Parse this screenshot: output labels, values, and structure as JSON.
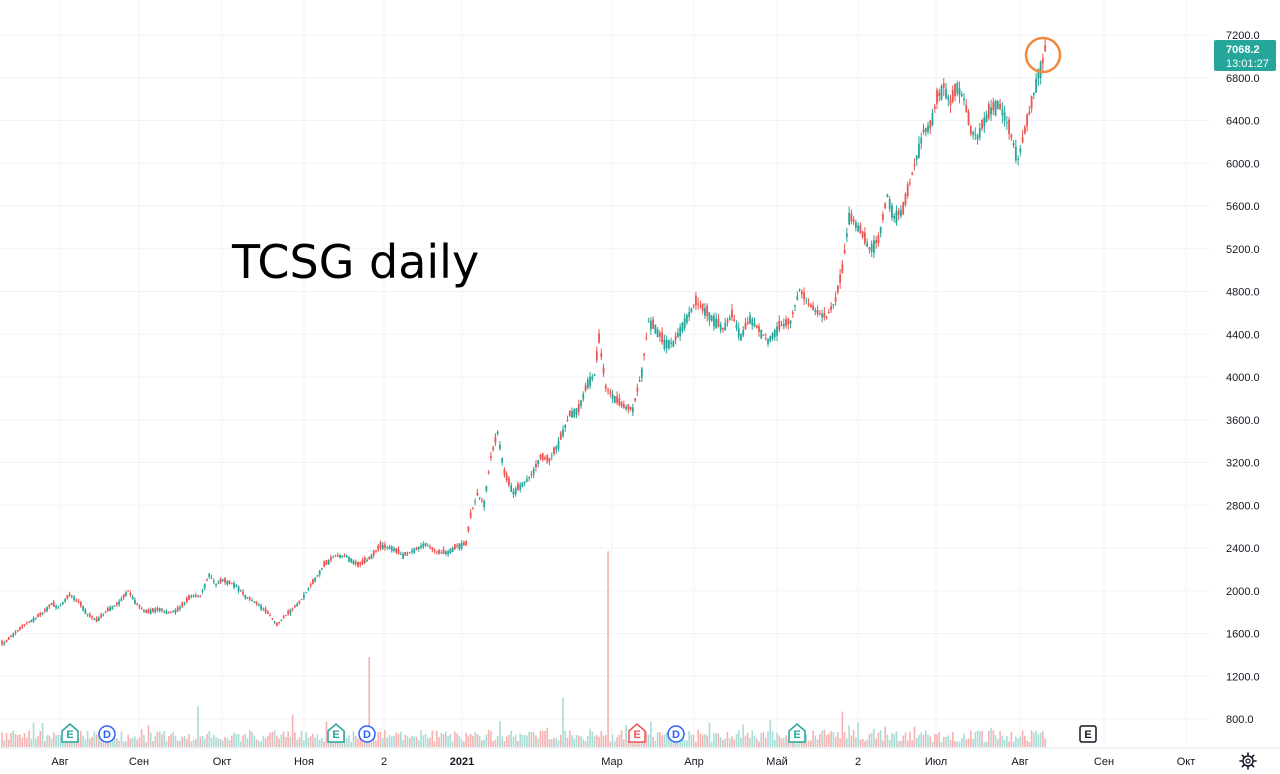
{
  "chart_data": {
    "type": "candlestick",
    "title": "TCSG daily",
    "ylim": [
      700,
      7250
    ],
    "y_ticks": [
      "800.0",
      "1200.0",
      "1600.0",
      "2000.0",
      "2400.0",
      "2800.0",
      "3200.0",
      "3600.0",
      "4000.0",
      "4400.0",
      "4800.0",
      "5200.0",
      "5600.0",
      "6000.0",
      "6400.0",
      "6800.0",
      "7200.0"
    ],
    "y_tick_values": [
      800,
      1200,
      1600,
      2000,
      2400,
      2800,
      3200,
      3600,
      4000,
      4400,
      4800,
      5200,
      5600,
      6000,
      6400,
      6800,
      7200
    ],
    "x_ticks": [
      "Авг",
      "Сен",
      "Окт",
      "Ноя",
      "2",
      "2021",
      "Мар",
      "Апр",
      "Май",
      "2",
      "Июл",
      "Авг",
      "Сен",
      "Окт"
    ],
    "last_price": "7068.2",
    "countdown": "13:01:27",
    "colors": {
      "up": "#26a69a",
      "down": "#ef5350",
      "up_volume": "#a8dcd6",
      "down_volume": "#f5b2b0",
      "highlight": "#f0883e",
      "price_tag": "#26a69a",
      "grid": "#f0f3fa",
      "dividend": "#2962ff"
    },
    "anchors": [
      [
        1,
        1510
      ],
      [
        5,
        1590
      ],
      [
        10,
        1680
      ],
      [
        18,
        1790
      ],
      [
        22,
        1880
      ],
      [
        25,
        1840
      ],
      [
        30,
        1960
      ],
      [
        34,
        1900
      ],
      [
        38,
        1780
      ],
      [
        42,
        1720
      ],
      [
        47,
        1820
      ],
      [
        52,
        1890
      ],
      [
        56,
        2000
      ],
      [
        60,
        1870
      ],
      [
        64,
        1800
      ],
      [
        70,
        1830
      ],
      [
        74,
        1790
      ],
      [
        78,
        1820
      ],
      [
        84,
        1950
      ],
      [
        88,
        1950
      ],
      [
        92,
        2150
      ],
      [
        95,
        2060
      ],
      [
        98,
        2100
      ],
      [
        104,
        2050
      ],
      [
        108,
        1950
      ],
      [
        114,
        1870
      ],
      [
        119,
        1770
      ],
      [
        122,
        1680
      ],
      [
        126,
        1770
      ],
      [
        132,
        1890
      ],
      [
        138,
        2080
      ],
      [
        143,
        2240
      ],
      [
        148,
        2330
      ],
      [
        153,
        2320
      ],
      [
        158,
        2240
      ],
      [
        163,
        2300
      ],
      [
        168,
        2420
      ],
      [
        173,
        2400
      ],
      [
        178,
        2330
      ],
      [
        183,
        2380
      ],
      [
        188,
        2440
      ],
      [
        193,
        2360
      ],
      [
        198,
        2360
      ],
      [
        202,
        2420
      ],
      [
        206,
        2440
      ],
      [
        208,
        2700
      ],
      [
        211,
        2900
      ],
      [
        214,
        2820
      ],
      [
        217,
        3250
      ],
      [
        220,
        3480
      ],
      [
        223,
        3100
      ],
      [
        227,
        2920
      ],
      [
        231,
        3000
      ],
      [
        235,
        3080
      ],
      [
        239,
        3250
      ],
      [
        243,
        3220
      ],
      [
        247,
        3380
      ],
      [
        252,
        3650
      ],
      [
        256,
        3700
      ],
      [
        260,
        3950
      ],
      [
        263,
        4020
      ],
      [
        265,
        4350
      ],
      [
        268,
        3900
      ],
      [
        272,
        3800
      ],
      [
        276,
        3720
      ],
      [
        280,
        3700
      ],
      [
        284,
        4050
      ],
      [
        287,
        4520
      ],
      [
        290,
        4460
      ],
      [
        294,
        4320
      ],
      [
        298,
        4320
      ],
      [
        303,
        4520
      ],
      [
        308,
        4700
      ],
      [
        312,
        4620
      ],
      [
        316,
        4540
      ],
      [
        320,
        4450
      ],
      [
        324,
        4580
      ],
      [
        328,
        4380
      ],
      [
        332,
        4550
      ],
      [
        336,
        4440
      ],
      [
        340,
        4340
      ],
      [
        345,
        4470
      ],
      [
        350,
        4520
      ],
      [
        354,
        4820
      ],
      [
        358,
        4680
      ],
      [
        362,
        4600
      ],
      [
        366,
        4560
      ],
      [
        370,
        4720
      ],
      [
        373,
        5000
      ],
      [
        376,
        5500
      ],
      [
        378,
        5460
      ],
      [
        381,
        5370
      ],
      [
        385,
        5200
      ],
      [
        389,
        5280
      ],
      [
        393,
        5700
      ],
      [
        396,
        5500
      ],
      [
        400,
        5560
      ],
      [
        404,
        5900
      ],
      [
        409,
        6300
      ],
      [
        412,
        6350
      ],
      [
        415,
        6600
      ],
      [
        418,
        6720
      ],
      [
        421,
        6560
      ],
      [
        424,
        6720
      ],
      [
        427,
        6600
      ],
      [
        430,
        6300
      ],
      [
        433,
        6250
      ],
      [
        436,
        6400
      ],
      [
        439,
        6500
      ],
      [
        442,
        6560
      ],
      [
        445,
        6450
      ],
      [
        448,
        6250
      ],
      [
        451,
        6040
      ],
      [
        454,
        6300
      ],
      [
        457,
        6550
      ],
      [
        460,
        6850
      ],
      [
        462,
        6950
      ],
      [
        463,
        7068
      ]
    ]
  },
  "events": [
    {
      "type": "E",
      "label": "E"
    },
    {
      "type": "D",
      "label": "D"
    },
    {
      "type": "E",
      "label": "E"
    },
    {
      "type": "D",
      "label": "D"
    },
    {
      "type": "E",
      "label": "E"
    },
    {
      "type": "D",
      "label": "D"
    },
    {
      "type": "E",
      "label": "E"
    },
    {
      "type": "E",
      "label": "E"
    }
  ],
  "icons": {
    "settings": "gear-icon"
  }
}
